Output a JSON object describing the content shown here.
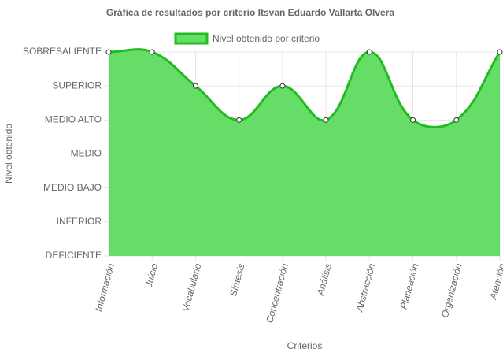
{
  "chart_data": {
    "type": "area",
    "title": "Gráfica de resultados por criterio Itsvan Eduardo Vallarta Olvera",
    "x_label": "Criterios",
    "y_label": "Nivel obtenido",
    "categories": [
      "Información",
      "Juicio",
      "Vocabulario",
      "Síntesis",
      "Concentración",
      "Análisis",
      "Abstracción",
      "Planeación",
      "Organización",
      "Atención"
    ],
    "series": [
      {
        "name": "Nivel obtenido por criterio",
        "color": "#22bb22",
        "fill": "#66dd66",
        "values": [
          6,
          6,
          5,
          4,
          5,
          4,
          6,
          4,
          4,
          6
        ]
      }
    ],
    "ylim": [
      0,
      6
    ],
    "yticks": [
      {
        "value": 0,
        "label": "DEFICIENTE"
      },
      {
        "value": 1,
        "label": "INFERIOR"
      },
      {
        "value": 2,
        "label": "MEDIO BAJO"
      },
      {
        "value": 3,
        "label": "MEDIO"
      },
      {
        "value": 4,
        "label": "MEDIO ALTO"
      },
      {
        "value": 5,
        "label": "SUPERIOR"
      },
      {
        "value": 6,
        "label": "SOBRESALIENTE"
      }
    ],
    "grid": true,
    "legend": "top"
  }
}
